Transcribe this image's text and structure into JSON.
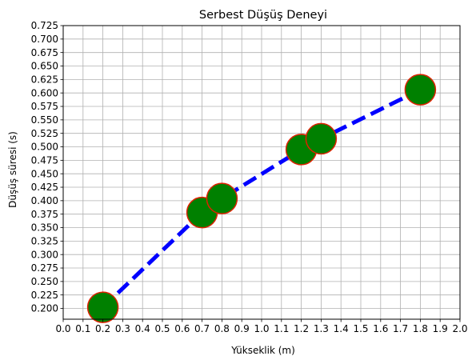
{
  "chart_data": {
    "type": "line",
    "title": "Serbest Düşüş Deneyi",
    "xlabel": "Yükseklik (m)",
    "ylabel": "Düşüş süresi (s)",
    "xlim": [
      0.0,
      2.0
    ],
    "ylim": [
      0.18,
      0.725
    ],
    "x_ticks": [
      "0.0",
      "0.1",
      "0.2",
      "0.3",
      "0.4",
      "0.5",
      "0.6",
      "0.7",
      "0.8",
      "0.9",
      "1.0",
      "1.1",
      "1.2",
      "1.3",
      "1.4",
      "1.5",
      "1.6",
      "1.7",
      "1.8",
      "1.9",
      "2.0"
    ],
    "y_ticks": [
      "0.200",
      "0.225",
      "0.250",
      "0.275",
      "0.300",
      "0.325",
      "0.350",
      "0.375",
      "0.400",
      "0.425",
      "0.450",
      "0.475",
      "0.500",
      "0.525",
      "0.550",
      "0.575",
      "0.600",
      "0.625",
      "0.650",
      "0.675",
      "0.700",
      "0.725"
    ],
    "grid": true,
    "series": [
      {
        "x": [
          0.2,
          0.7,
          0.8,
          1.2,
          1.3,
          1.8
        ],
        "y": [
          0.202,
          0.378,
          0.404,
          0.495,
          0.515,
          0.606
        ],
        "line_style": "dashed",
        "line_color": "#0000ff",
        "marker_color": "#008000",
        "marker_edge_color": "#dd2200"
      }
    ]
  }
}
